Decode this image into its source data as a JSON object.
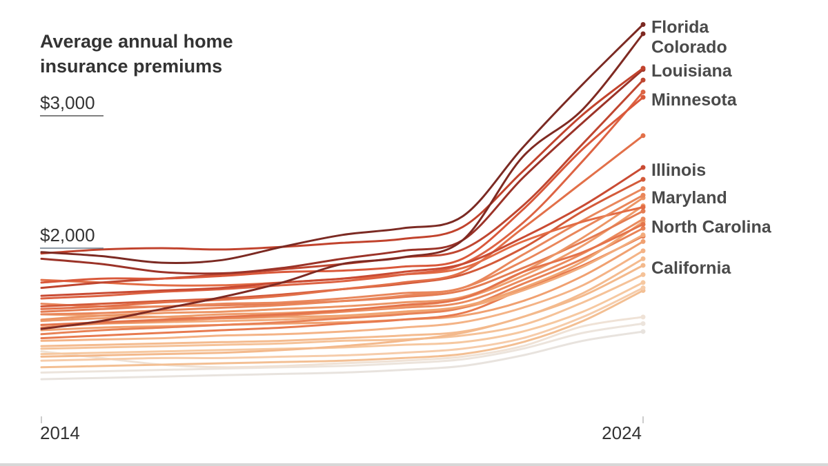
{
  "chart_data": {
    "type": "line",
    "title_lines": [
      "Average annual home",
      "insurance premiums"
    ],
    "x_range": [
      2014,
      2024
    ],
    "x_ticks": [
      "2014",
      "2024"
    ],
    "y_ticks": [
      {
        "value": 3000,
        "label": "$3,000"
      },
      {
        "value": 2000,
        "label": "$2,000"
      }
    ],
    "ylim": [
      900,
      3900
    ],
    "grid": false,
    "labeled_series": [
      {
        "name": "Florida",
        "color": "#7b2a23",
        "values": [
          1970,
          1940,
          1890,
          1910,
          2010,
          2100,
          2150,
          2240,
          2760,
          3240,
          3690
        ]
      },
      {
        "name": "Colorado",
        "color": "#7f2a22",
        "values": [
          1390,
          1450,
          1540,
          1630,
          1740,
          1880,
          1930,
          2060,
          2690,
          3050,
          3620
        ]
      },
      {
        "name": "Louisiana",
        "color": "#c1432d",
        "values": [
          1960,
          1990,
          2000,
          1990,
          2010,
          2040,
          2070,
          2160,
          2580,
          3010,
          3360
        ]
      },
      {
        "name": "Minnesota",
        "color": "#d9583a",
        "values": [
          1740,
          1770,
          1770,
          1790,
          1820,
          1830,
          1860,
          1920,
          2290,
          2750,
          3140
        ]
      },
      {
        "name": "Illinois",
        "color": "#c94b33",
        "values": [
          1640,
          1660,
          1680,
          1700,
          1740,
          1770,
          1820,
          1880,
          2080,
          2320,
          2610
        ]
      },
      {
        "name": "Maryland",
        "color": "#e9865a",
        "values": [
          1500,
          1510,
          1530,
          1550,
          1570,
          1600,
          1640,
          1700,
          1900,
          2150,
          2400
        ]
      },
      {
        "name": "North Carolina",
        "color": "#e4744b",
        "values": [
          1420,
          1440,
          1460,
          1480,
          1500,
          1530,
          1570,
          1620,
          1820,
          1970,
          2180
        ]
      },
      {
        "name": "California",
        "color": "#f3b98c",
        "values": [
          1180,
          1190,
          1200,
          1210,
          1230,
          1260,
          1300,
          1360,
          1480,
          1640,
          1870
        ]
      }
    ],
    "other_series": [
      {
        "color": "#9b3328",
        "values": [
          1920,
          1880,
          1820,
          1810,
          1850,
          1920,
          1980,
          2060,
          2530,
          2950,
          3350
        ]
      },
      {
        "color": "#bf4630",
        "values": [
          1700,
          1740,
          1770,
          1800,
          1840,
          1880,
          1930,
          1990,
          2320,
          2790,
          3270
        ]
      },
      {
        "color": "#dd6343",
        "values": [
          1620,
          1640,
          1670,
          1690,
          1720,
          1750,
          1800,
          1880,
          2190,
          2660,
          3180
        ]
      },
      {
        "color": "#e27049",
        "values": [
          1540,
          1560,
          1590,
          1610,
          1640,
          1690,
          1740,
          1820,
          2150,
          2500,
          2850
        ]
      },
      {
        "color": "#e26c44",
        "values": [
          1760,
          1740,
          1720,
          1720,
          1740,
          1770,
          1800,
          1850,
          2050,
          2200,
          2310
        ]
      },
      {
        "color": "#d35a39",
        "values": [
          1560,
          1580,
          1600,
          1620,
          1650,
          1690,
          1730,
          1800,
          2000,
          2280,
          2520
        ]
      },
      {
        "color": "#e9875c",
        "values": [
          1580,
          1560,
          1560,
          1580,
          1590,
          1620,
          1660,
          1700,
          1950,
          2210,
          2450
        ]
      },
      {
        "color": "#ec9565",
        "values": [
          1460,
          1490,
          1510,
          1520,
          1540,
          1560,
          1590,
          1630,
          1820,
          2080,
          2380
        ]
      },
      {
        "color": "#e47c52",
        "values": [
          1520,
          1540,
          1560,
          1570,
          1580,
          1600,
          1630,
          1680,
          1850,
          2050,
          2280
        ]
      },
      {
        "color": "#ef9c6c",
        "values": [
          1450,
          1470,
          1480,
          1500,
          1510,
          1530,
          1560,
          1620,
          1790,
          2020,
          2320
        ]
      },
      {
        "color": "#ea8a5d",
        "values": [
          1400,
          1430,
          1450,
          1470,
          1490,
          1520,
          1550,
          1590,
          1760,
          1960,
          2220
        ]
      },
      {
        "color": "#f0a472",
        "values": [
          1500,
          1490,
          1480,
          1470,
          1480,
          1490,
          1520,
          1560,
          1700,
          1900,
          2200
        ]
      },
      {
        "color": "#e88256",
        "values": [
          1350,
          1380,
          1400,
          1420,
          1440,
          1470,
          1500,
          1550,
          1730,
          1920,
          2150
        ]
      },
      {
        "color": "#f2ab7c",
        "values": [
          1420,
          1430,
          1440,
          1450,
          1460,
          1480,
          1510,
          1550,
          1680,
          1860,
          2100
        ]
      },
      {
        "color": "#e77a4f",
        "values": [
          1320,
          1340,
          1360,
          1380,
          1400,
          1430,
          1460,
          1510,
          1690,
          1870,
          2090
        ]
      },
      {
        "color": "#f0a070",
        "values": [
          1380,
          1400,
          1410,
          1420,
          1430,
          1440,
          1460,
          1490,
          1600,
          1790,
          2050
        ]
      },
      {
        "color": "#f4b386",
        "values": [
          1300,
          1310,
          1320,
          1340,
          1350,
          1370,
          1400,
          1440,
          1550,
          1720,
          1980
        ]
      },
      {
        "color": "#f4bb8f",
        "values": [
          1260,
          1270,
          1280,
          1290,
          1300,
          1320,
          1340,
          1370,
          1480,
          1660,
          1920
        ]
      },
      {
        "color": "#f5c298",
        "values": [
          1240,
          1250,
          1260,
          1270,
          1280,
          1300,
          1310,
          1340,
          1420,
          1590,
          1800
        ]
      },
      {
        "color": "#f6c8a0",
        "values": [
          1200,
          1210,
          1220,
          1230,
          1240,
          1250,
          1270,
          1290,
          1370,
          1520,
          1740
        ]
      },
      {
        "color": "#f6ccaa",
        "values": [
          1150,
          1160,
          1170,
          1170,
          1180,
          1190,
          1210,
          1240,
          1320,
          1480,
          1700
        ]
      },
      {
        "color": "#f3bf93",
        "values": [
          1100,
          1110,
          1120,
          1130,
          1140,
          1150,
          1170,
          1200,
          1290,
          1450,
          1680
        ]
      },
      {
        "color": "#efe2d6",
        "values": [
          1220,
          1170,
          1120,
          1100,
          1110,
          1130,
          1150,
          1180,
          1260,
          1410,
          1480
        ]
      },
      {
        "color": "#ece4dc",
        "values": [
          1060,
          1070,
          1080,
          1090,
          1100,
          1110,
          1130,
          1160,
          1240,
          1360,
          1430
        ]
      },
      {
        "color": "#e8e3de",
        "values": [
          1010,
          1020,
          1030,
          1040,
          1050,
          1060,
          1080,
          1110,
          1190,
          1300,
          1370
        ]
      }
    ]
  }
}
